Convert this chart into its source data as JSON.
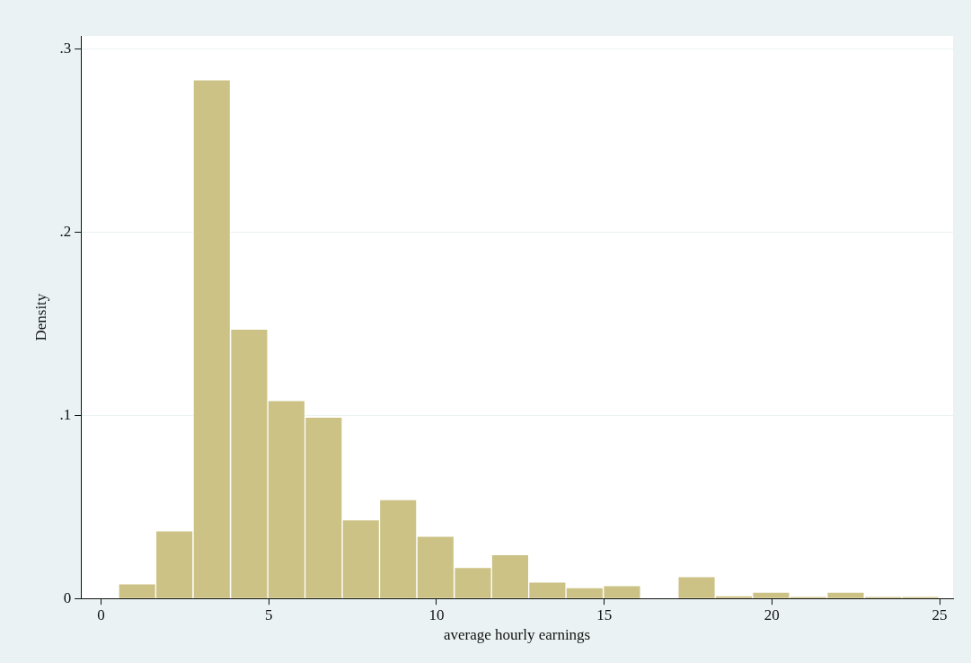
{
  "chart_data": {
    "type": "histogram",
    "xlabel": "average hourly earnings",
    "ylabel": "Density",
    "bins": [
      0.52,
      1.63,
      2.74,
      3.86,
      4.97,
      6.08,
      7.19,
      8.3,
      9.41,
      10.53,
      11.64,
      12.75,
      13.86,
      14.97,
      16.09,
      17.2,
      18.31,
      19.42,
      20.53,
      21.64,
      22.76,
      23.87,
      24.98
    ],
    "values": [
      0.008,
      0.037,
      0.283,
      0.147,
      0.108,
      0.099,
      0.043,
      0.054,
      0.034,
      0.017,
      0.024,
      0.009,
      0.006,
      0.007,
      0,
      0.012,
      0.0015,
      0.0035,
      0.001,
      0.0035,
      0.001,
      0.001
    ],
    "color": "#ccc285",
    "xlim": [
      -0.6,
      25.4
    ],
    "xticks": [
      0,
      5,
      10,
      15,
      20,
      25
    ],
    "ylim": [
      0,
      0.307
    ],
    "yticks": [
      {
        "value": 0,
        "label": "0"
      },
      {
        "value": 0.1,
        "label": ".1"
      },
      {
        "value": 0.2,
        "label": ".2"
      },
      {
        "value": 0.3,
        "label": ".3"
      }
    ],
    "grid": "y",
    "legend": false
  }
}
